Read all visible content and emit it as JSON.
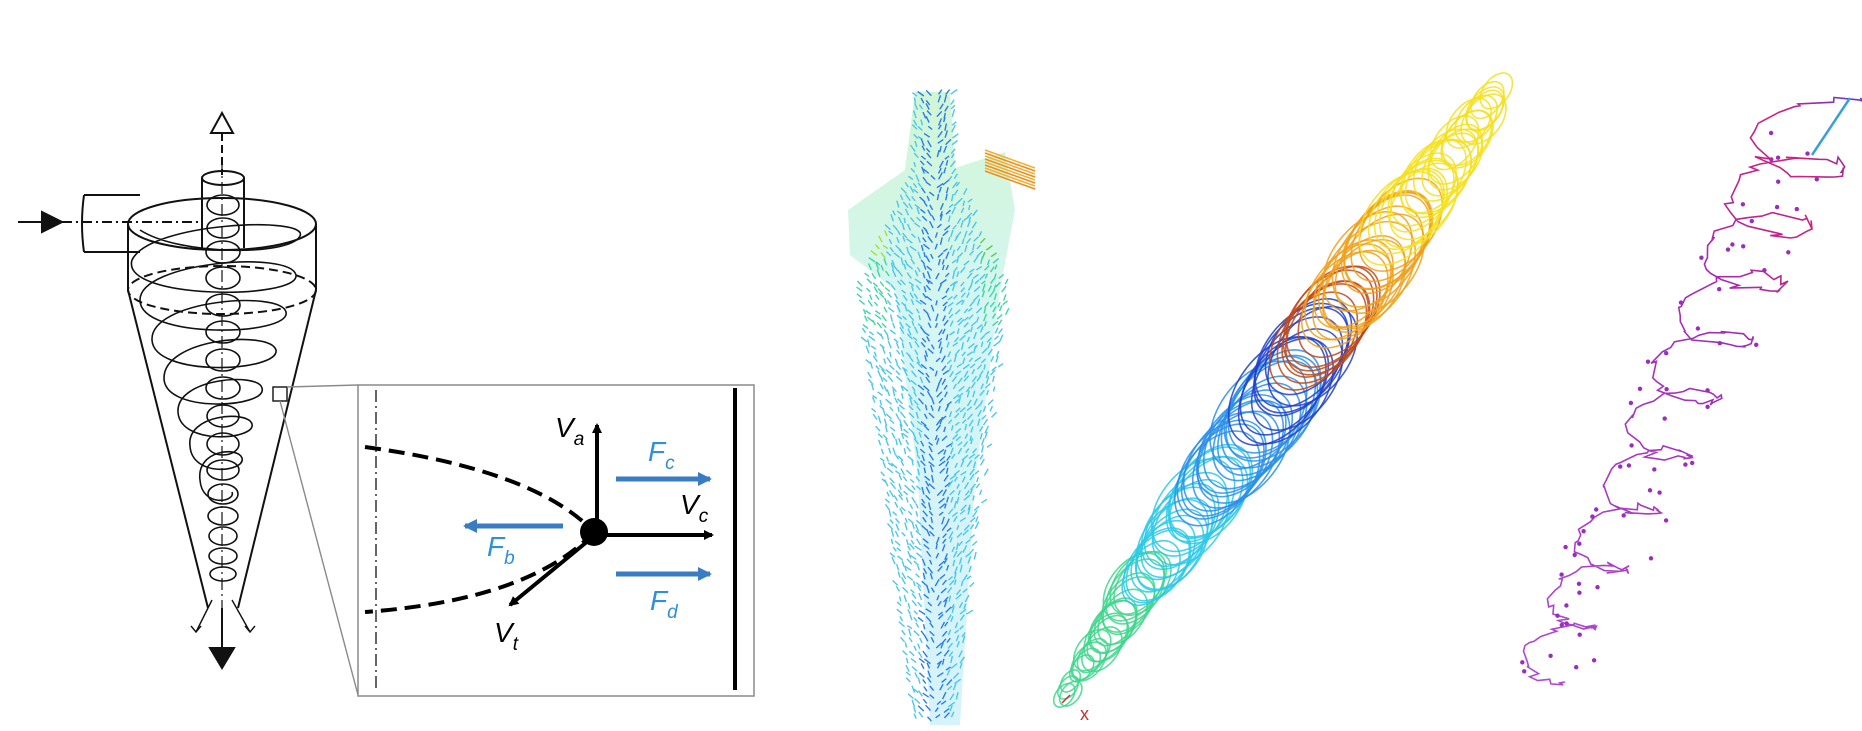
{
  "force_diagram": {
    "velocities": [
      {
        "symbol": "V",
        "sub": "a"
      },
      {
        "symbol": "V",
        "sub": "c"
      },
      {
        "symbol": "V",
        "sub": "t"
      }
    ],
    "forces": [
      {
        "symbol": "F",
        "sub": "c"
      },
      {
        "symbol": "F",
        "sub": "b"
      },
      {
        "symbol": "F",
        "sub": "d"
      }
    ],
    "axis_marker": "x"
  },
  "colors": {
    "force_arrows": "#3a7cc4",
    "force_labels": "#2f8fd8",
    "velocity_arrows": "#000000",
    "inset_frame": "#8a8a8a"
  }
}
